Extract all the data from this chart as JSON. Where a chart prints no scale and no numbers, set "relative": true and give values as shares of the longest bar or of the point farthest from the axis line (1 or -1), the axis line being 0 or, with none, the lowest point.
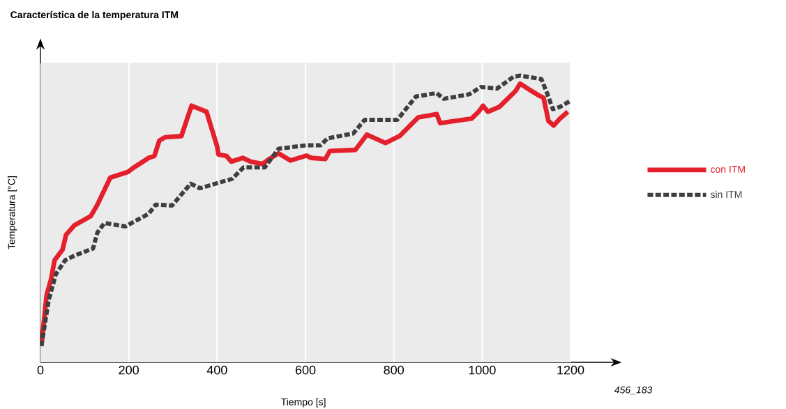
{
  "chart_data": {
    "type": "line",
    "title": "Característica de la temperatura ITM",
    "xlabel": "Tiempo [s]",
    "ylabel": "Temperatura [°C]",
    "annotations": [
      "456_183"
    ],
    "relative": true,
    "xlim": [
      0,
      1300
    ],
    "bands": [
      {
        "axis": "x",
        "from": 0,
        "to": 1200,
        "color": "#ebebeb"
      }
    ],
    "xticks": [
      0,
      200,
      400,
      600,
      800,
      1000,
      1200
    ],
    "grid": "x",
    "legend": "right",
    "series": [
      {
        "name": "con ITM",
        "color": "#e3202c",
        "line_style": "solid",
        "x": [
          2,
          14,
          24,
          32,
          50,
          58,
          77,
          114,
          129,
          158,
          198,
          208,
          245,
          258,
          269,
          282,
          319,
          342,
          376,
          400,
          403,
          421,
          432,
          458,
          476,
          503,
          518,
          539,
          566,
          602,
          613,
          645,
          655,
          713,
          739,
          781,
          813,
          855,
          897,
          905,
          939,
          976,
          992,
          1002,
          1013,
          1039,
          1076,
          1086,
          1107,
          1128,
          1139,
          1150,
          1162,
          1176,
          1194
        ],
        "values": [
          0.057,
          0.235,
          0.29,
          0.356,
          0.393,
          0.445,
          0.478,
          0.51,
          0.55,
          0.644,
          0.664,
          0.676,
          0.713,
          0.72,
          0.773,
          0.785,
          0.789,
          0.895,
          0.874,
          0.753,
          0.725,
          0.72,
          0.7,
          0.713,
          0.7,
          0.692,
          0.709,
          0.729,
          0.704,
          0.721,
          0.713,
          0.709,
          0.737,
          0.741,
          0.794,
          0.765,
          0.789,
          0.854,
          0.866,
          0.834,
          0.842,
          0.85,
          0.874,
          0.895,
          0.874,
          0.891,
          0.947,
          0.972,
          0.951,
          0.931,
          0.923,
          0.842,
          0.826,
          0.85,
          0.874
        ]
      },
      {
        "name": "sin ITM",
        "color": "#3f3f3f",
        "line_style": "dashed",
        "x": [
          2,
          19,
          35,
          56,
          77,
          119,
          129,
          145,
          192,
          245,
          261,
          298,
          340,
          361,
          434,
          460,
          508,
          539,
          602,
          634,
          650,
          708,
          734,
          808,
          850,
          897,
          913,
          971,
          997,
          1034,
          1071,
          1086,
          1134,
          1147,
          1160,
          1176,
          1199
        ],
        "values": [
          0.057,
          0.219,
          0.308,
          0.356,
          0.372,
          0.397,
          0.453,
          0.486,
          0.474,
          0.518,
          0.55,
          0.547,
          0.623,
          0.607,
          0.64,
          0.68,
          0.68,
          0.745,
          0.757,
          0.757,
          0.781,
          0.798,
          0.846,
          0.846,
          0.927,
          0.939,
          0.919,
          0.935,
          0.96,
          0.955,
          0.996,
          1.0,
          0.988,
          0.939,
          0.883,
          0.891,
          0.911
        ]
      }
    ]
  }
}
